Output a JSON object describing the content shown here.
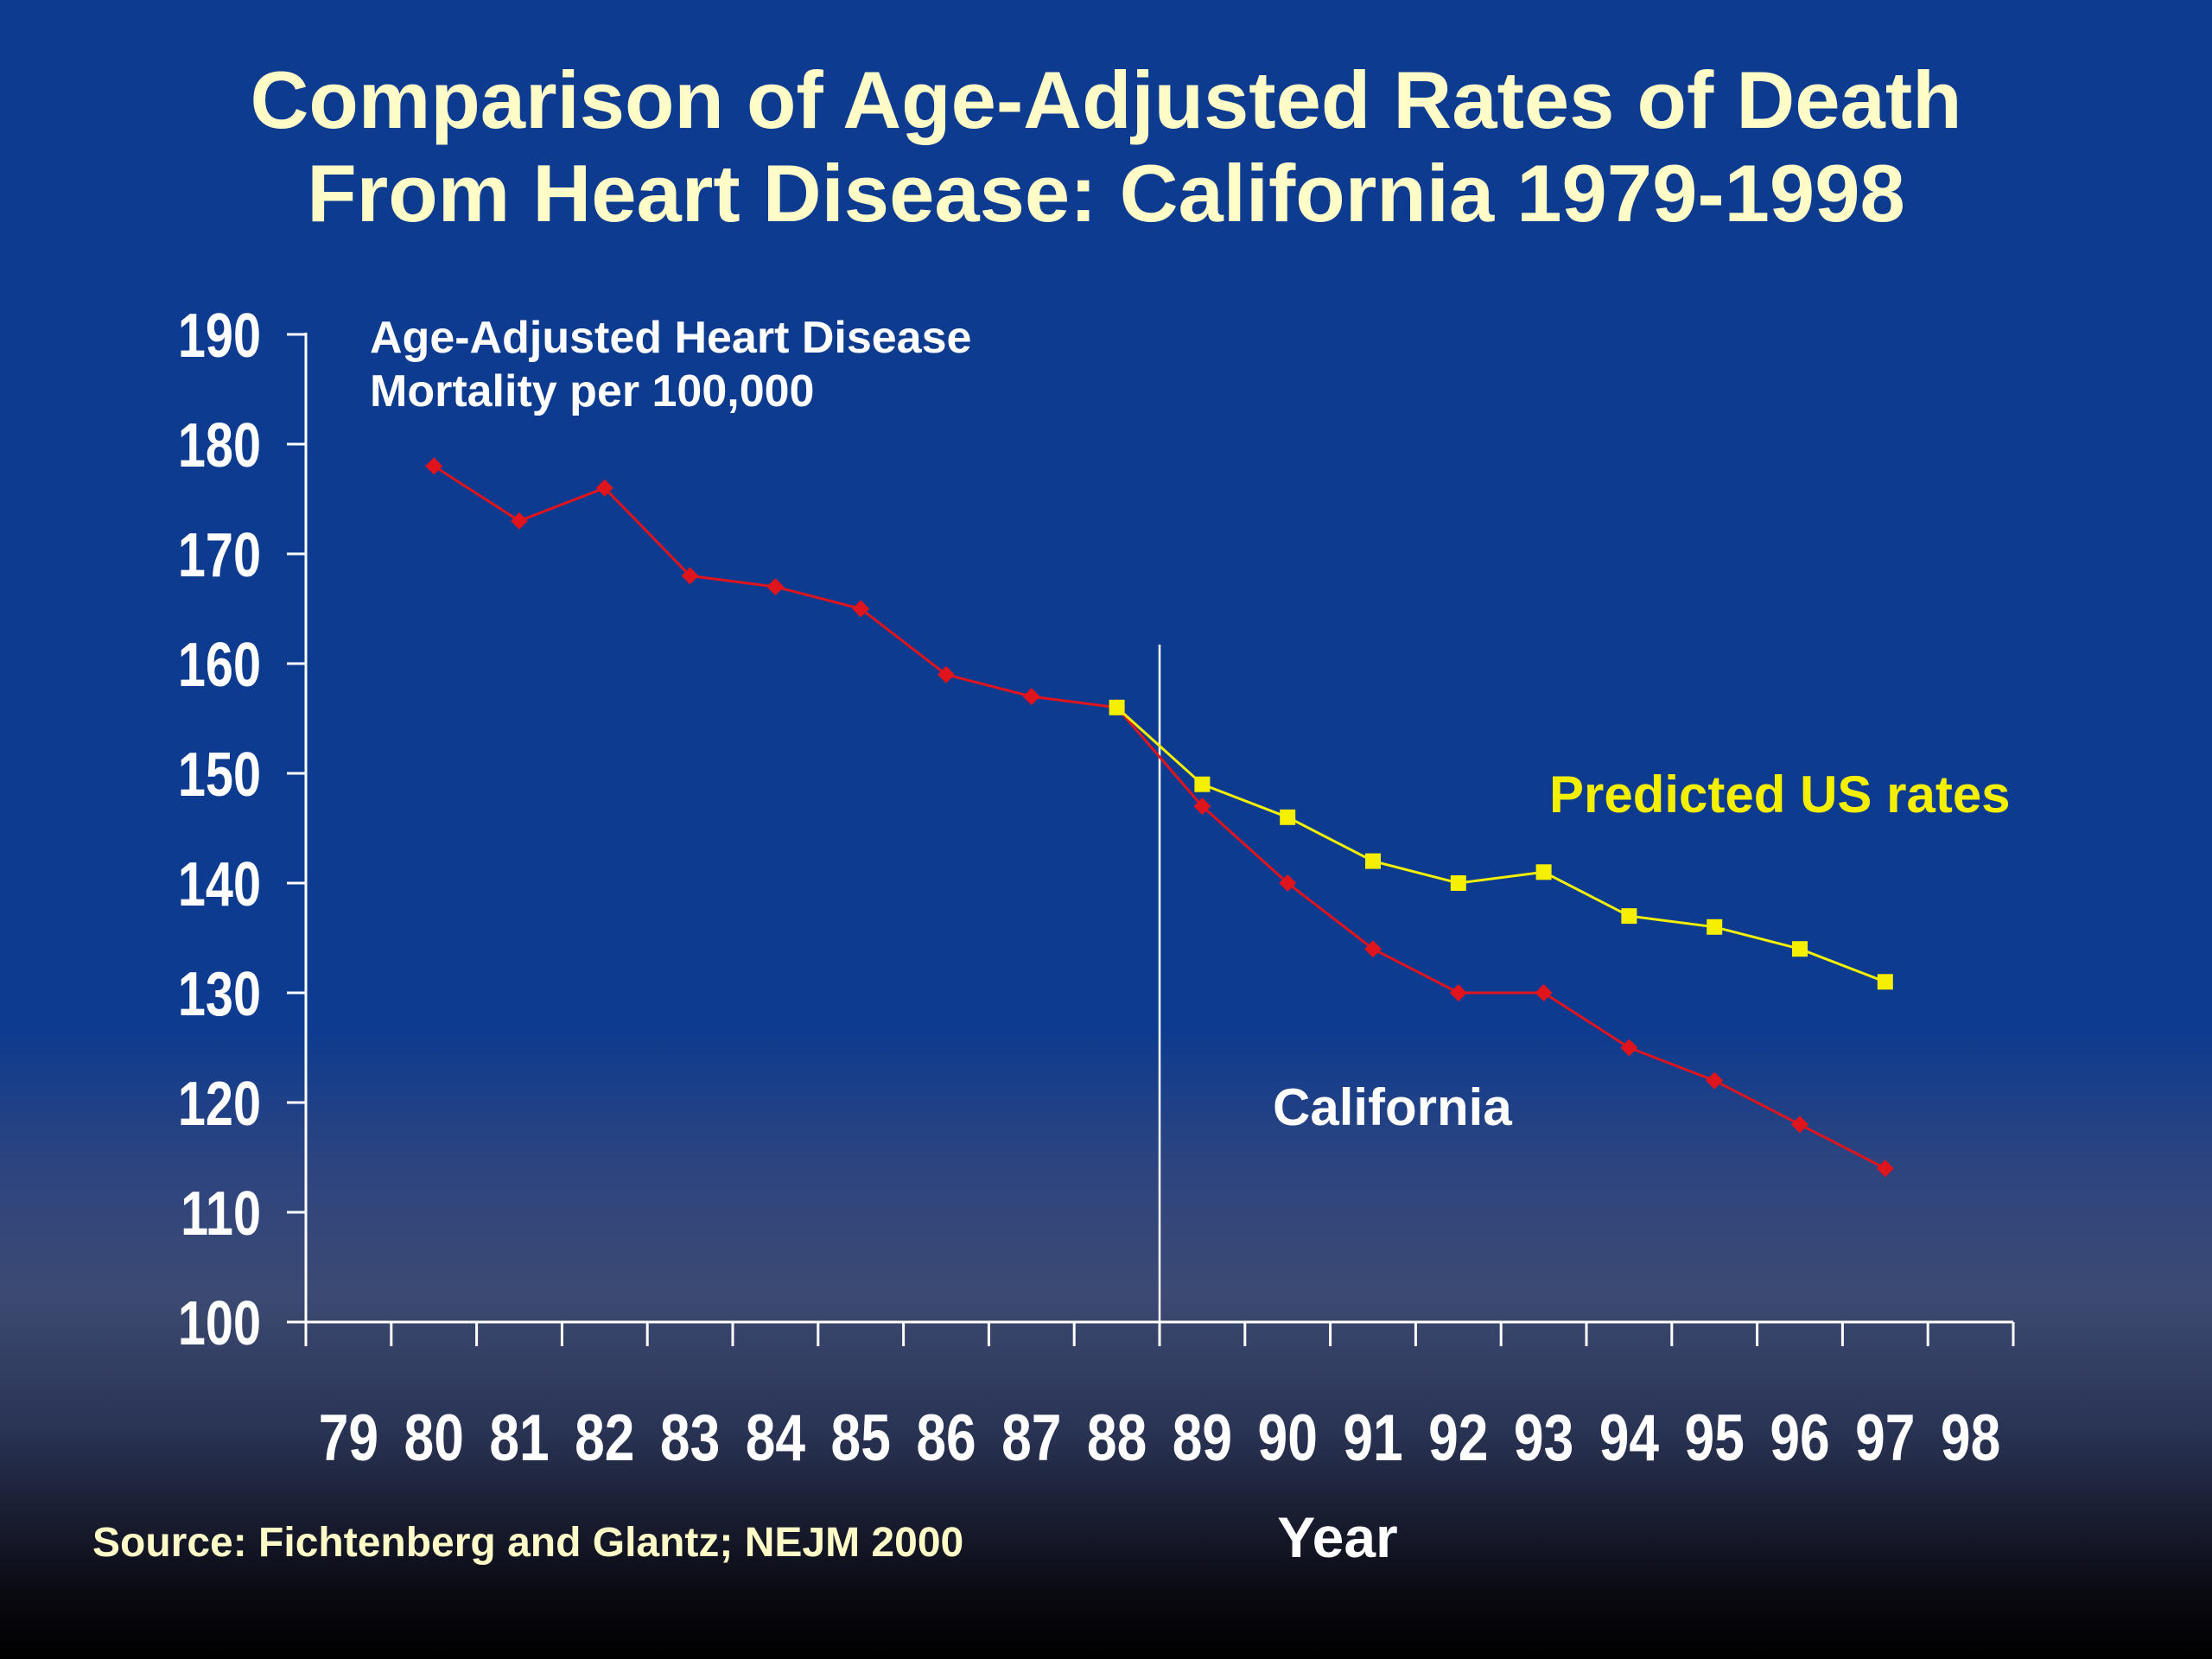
{
  "title": {
    "line1": "Comparison of Age-Adjusted Rates of Death",
    "line2": "From Heart Disease:  California 1979-1998"
  },
  "source": "Source:  Fichtenberg and Glantz;  NEJM 2000",
  "colors": {
    "background": "#0d3b8f",
    "title": "#fffcc8",
    "california": "#e0141c",
    "predicted": "#f5f000",
    "axis": "#ffffff"
  },
  "chart_data": {
    "type": "line",
    "ylabel": "Age-Adjusted Heart Disease Mortality per 100,000",
    "ylabel_lines": [
      "Age-Adjusted Heart Disease",
      "Mortality per 100,000"
    ],
    "xlabel": "Year",
    "ylim": [
      100,
      190
    ],
    "yticks": [
      100,
      110,
      120,
      130,
      140,
      150,
      160,
      170,
      180,
      190
    ],
    "x_categories": [
      "79",
      "80",
      "81",
      "82",
      "83",
      "84",
      "85",
      "86",
      "87",
      "88",
      "89",
      "90",
      "91",
      "92",
      "93",
      "94",
      "95",
      "96",
      "97",
      "98"
    ],
    "reference_line_after": "88",
    "series": [
      {
        "name": "California",
        "marker": "diamond",
        "points": [
          {
            "x": "80",
            "y": 178
          },
          {
            "x": "81",
            "y": 173
          },
          {
            "x": "82",
            "y": 176
          },
          {
            "x": "83",
            "y": 168
          },
          {
            "x": "84",
            "y": 167
          },
          {
            "x": "85",
            "y": 165
          },
          {
            "x": "86",
            "y": 159
          },
          {
            "x": "87",
            "y": 157
          },
          {
            "x": "88",
            "y": 156
          },
          {
            "x": "89",
            "y": 147
          },
          {
            "x": "90",
            "y": 140
          },
          {
            "x": "91",
            "y": 134
          },
          {
            "x": "92",
            "y": 130
          },
          {
            "x": "93",
            "y": 130
          },
          {
            "x": "94",
            "y": 125
          },
          {
            "x": "95",
            "y": 122
          },
          {
            "x": "96",
            "y": 118
          },
          {
            "x": "97",
            "y": 114
          }
        ]
      },
      {
        "name": "Predicted US rates",
        "marker": "square",
        "points": [
          {
            "x": "88",
            "y": 156
          },
          {
            "x": "89",
            "y": 149
          },
          {
            "x": "90",
            "y": 146
          },
          {
            "x": "91",
            "y": 142
          },
          {
            "x": "92",
            "y": 140
          },
          {
            "x": "93",
            "y": 141
          },
          {
            "x": "94",
            "y": 137
          },
          {
            "x": "95",
            "y": 136
          },
          {
            "x": "96",
            "y": 134
          },
          {
            "x": "97",
            "y": 131
          }
        ]
      }
    ],
    "annotations": [
      {
        "text": "Predicted US rates",
        "series": "Predicted US rates"
      },
      {
        "text": "California",
        "series": "California"
      }
    ]
  }
}
